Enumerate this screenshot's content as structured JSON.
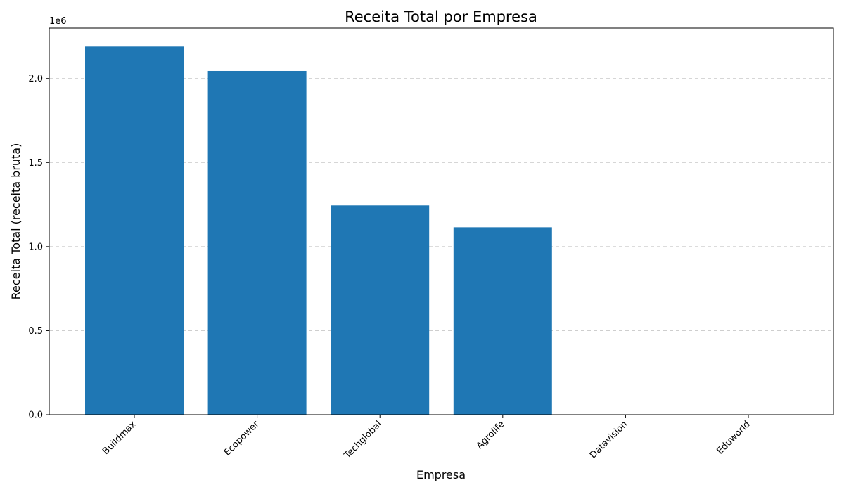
{
  "chart_data": {
    "type": "bar",
    "title": "Receita Total por Empresa",
    "xlabel": "Empresa",
    "ylabel": "Receita Total (receita bruta)",
    "y_scale_label": "1e6",
    "categories": [
      "Buildmax",
      "Ecopower",
      "Techglobal",
      "Agrolife",
      "Datavision",
      "Eduworld"
    ],
    "values": [
      2190000,
      2045000,
      1245000,
      1115000,
      0,
      0
    ],
    "ylim": [
      0,
      2300000
    ],
    "yticks": [
      {
        "value": 0,
        "label": "0.0"
      },
      {
        "value": 500000,
        "label": "0.5"
      },
      {
        "value": 1000000,
        "label": "1.0"
      },
      {
        "value": 1500000,
        "label": "1.5"
      },
      {
        "value": 2000000,
        "label": "2.0"
      }
    ],
    "bar_color": "#1f77b4",
    "grid": "y-dashed",
    "legend": "none"
  }
}
